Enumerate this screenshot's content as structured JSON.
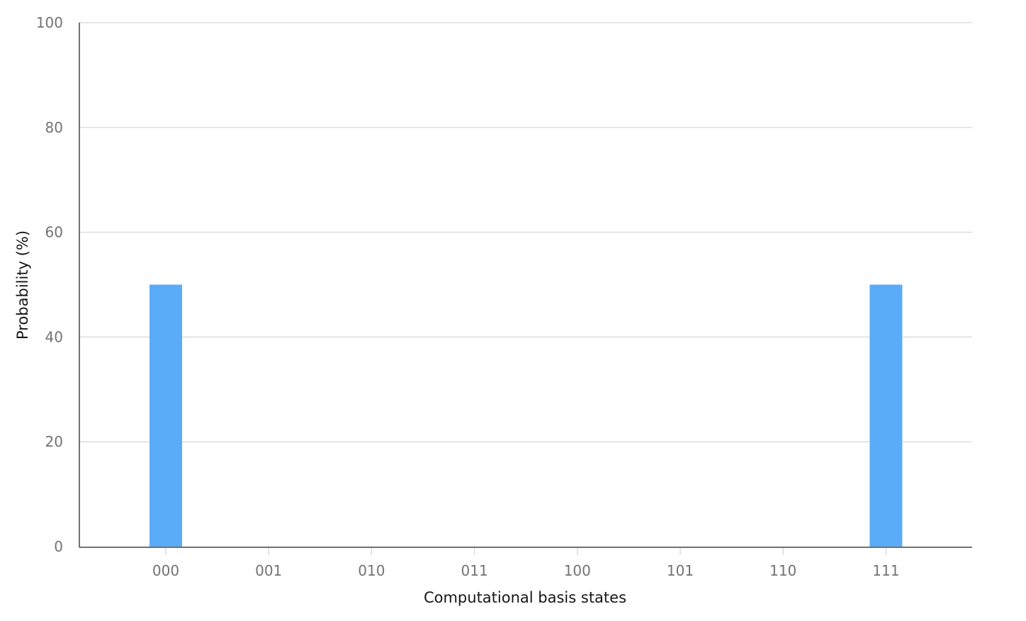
{
  "chart_data": {
    "type": "bar",
    "categories": [
      "000",
      "001",
      "010",
      "011",
      "100",
      "101",
      "110",
      "111"
    ],
    "values": [
      50,
      0,
      0,
      0,
      0,
      0,
      0,
      50
    ],
    "title": "",
    "xlabel": "Computational basis states",
    "ylabel": "Probability (%)",
    "ylim": [
      0,
      100
    ],
    "yticks": [
      0,
      20,
      40,
      60,
      80,
      100
    ],
    "grid": true,
    "legend": "none",
    "colors": {
      "bar": "#5aacf8",
      "grid": "#dddddd",
      "axis": "#444444",
      "tick_label": "#737373",
      "axis_title": "#161616"
    }
  }
}
